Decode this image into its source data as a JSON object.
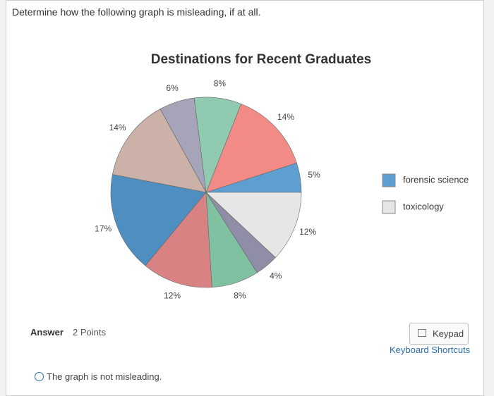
{
  "question": "Determine how the following graph is misleading, if at all.",
  "chart_data": {
    "type": "pie",
    "title": "Destinations for Recent Graduates",
    "values": [
      5,
      14,
      8,
      6,
      14,
      17,
      12,
      8,
      4,
      12
    ],
    "value_labels": [
      "5%",
      "14%",
      "8%",
      "6%",
      "14%",
      "17%",
      "12%",
      "8%",
      "4%",
      "12%"
    ],
    "colors": [
      "#5c9fd0",
      "#f28a86",
      "#90cbb1",
      "#a6a4b8",
      "#cbb1a7",
      "#4f8ec0",
      "#d98283",
      "#80c1a2",
      "#8f8ea6",
      "#e6e6e6"
    ],
    "legend": [
      {
        "name": "forensic science",
        "color": "#5c9fd0"
      },
      {
        "name": "toxicology",
        "color": "#e6e6e6"
      }
    ]
  },
  "answer": {
    "label": "Answer",
    "points": "2 Points",
    "keypad": "Keypad",
    "shortcuts": "Keyboard Shortcuts",
    "option": "The graph is not misleading."
  }
}
